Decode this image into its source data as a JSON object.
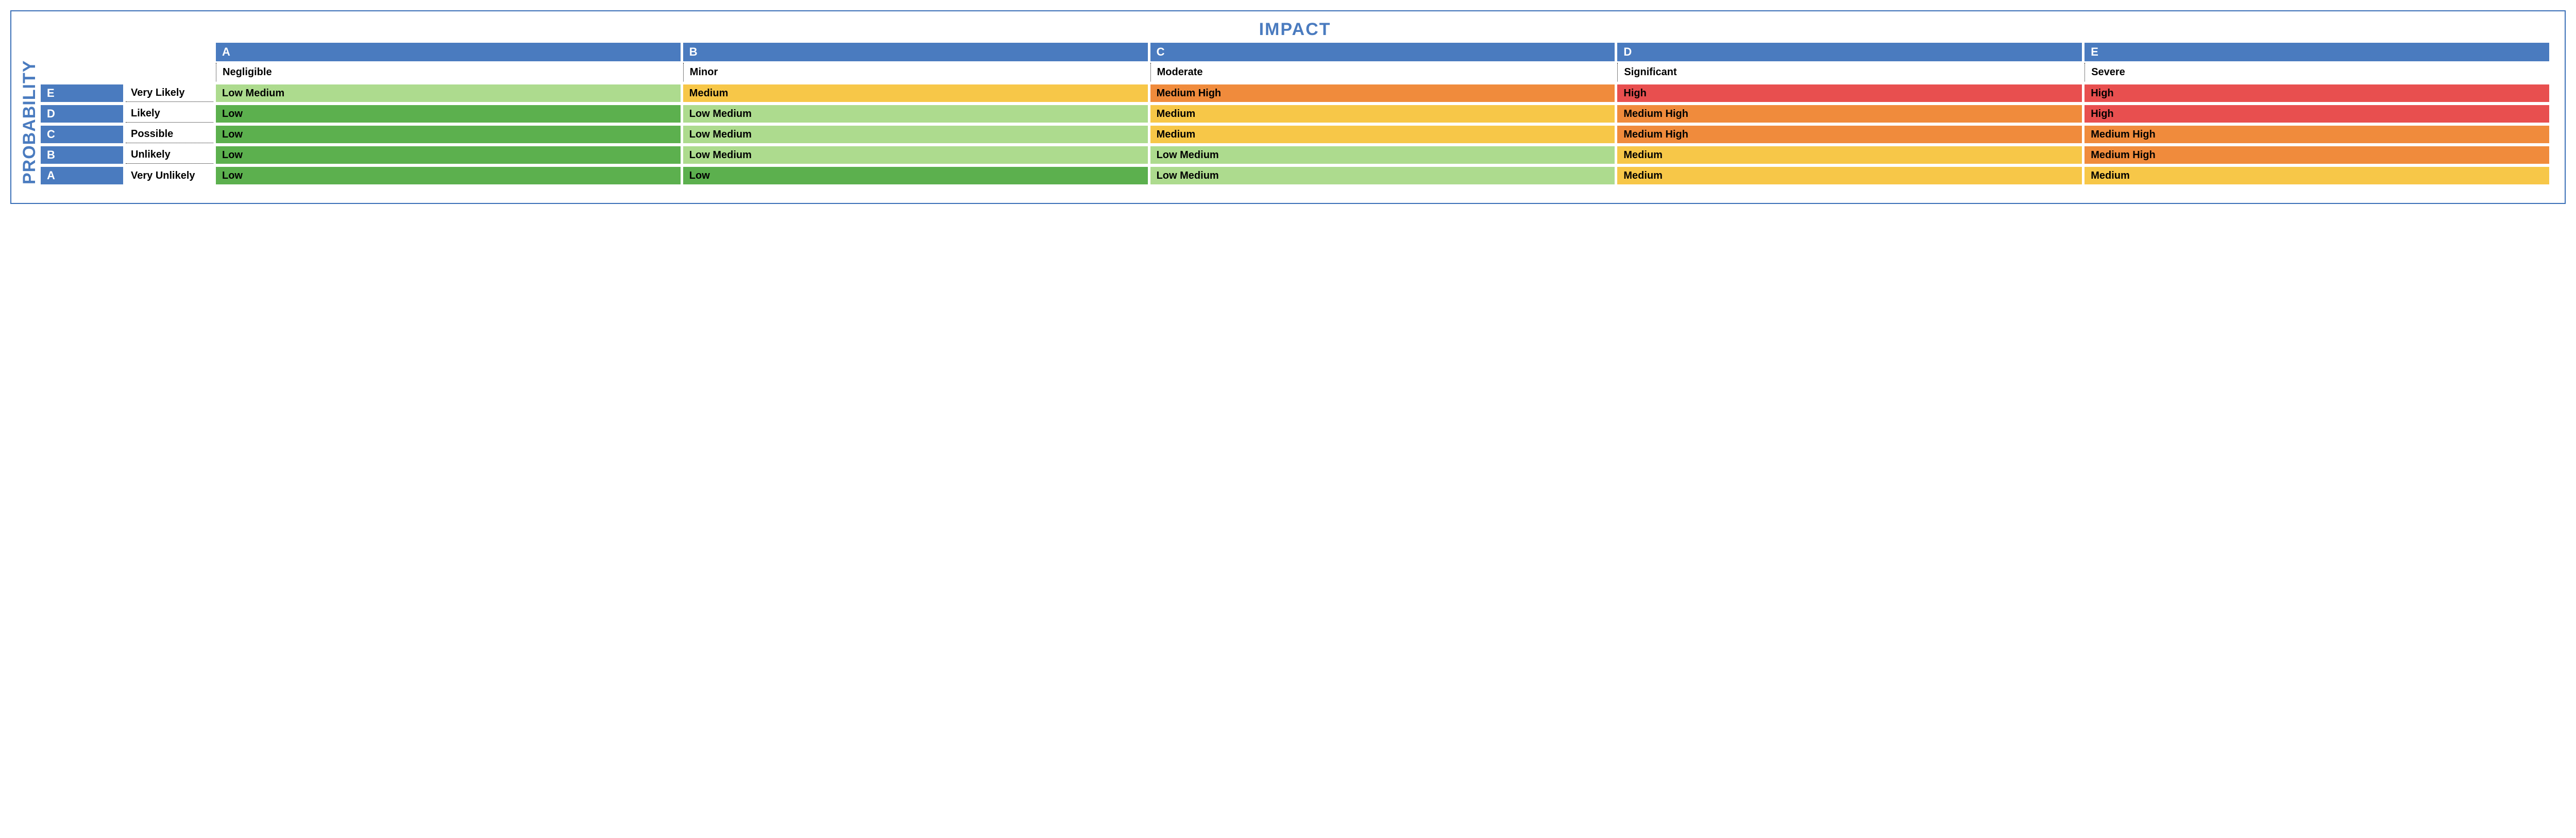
{
  "axis": {
    "x_title": "IMPACT",
    "y_title": "PROBABILITY",
    "title_color": "#4a7bbf",
    "title_fontsize": 34
  },
  "frame_border_color": "#3a6fb7",
  "header_bg": "#4a7bbf",
  "header_fg": "#ffffff",
  "cell_fg": "#000000",
  "impact": {
    "letters": [
      "A",
      "B",
      "C",
      "D",
      "E"
    ],
    "labels": [
      "Negligible",
      "Minor",
      "Moderate",
      "Significant",
      "Severe"
    ]
  },
  "probability": {
    "letters": [
      "E",
      "D",
      "C",
      "B",
      "A"
    ],
    "labels": [
      "Very Likely",
      "Likely",
      "Possible",
      "Unlikely",
      "Very Unlikely"
    ]
  },
  "risk_levels": {
    "Low": {
      "bg": "#5cb04e"
    },
    "Low Medium": {
      "bg": "#addb8e"
    },
    "Medium": {
      "bg": "#f7c748"
    },
    "Medium High": {
      "bg": "#f08b3c"
    },
    "High": {
      "bg": "#e84f4f"
    }
  },
  "matrix": [
    [
      "Low Medium",
      "Medium",
      "Medium High",
      "High",
      "High"
    ],
    [
      "Low",
      "Low Medium",
      "Medium",
      "Medium High",
      "High"
    ],
    [
      "Low",
      "Low Medium",
      "Medium",
      "Medium High",
      "Medium High"
    ],
    [
      "Low",
      "Low Medium",
      "Low Medium",
      "Medium",
      "Medium High"
    ],
    [
      "Low",
      "Low",
      "Low Medium",
      "Medium",
      "Medium"
    ]
  ]
}
